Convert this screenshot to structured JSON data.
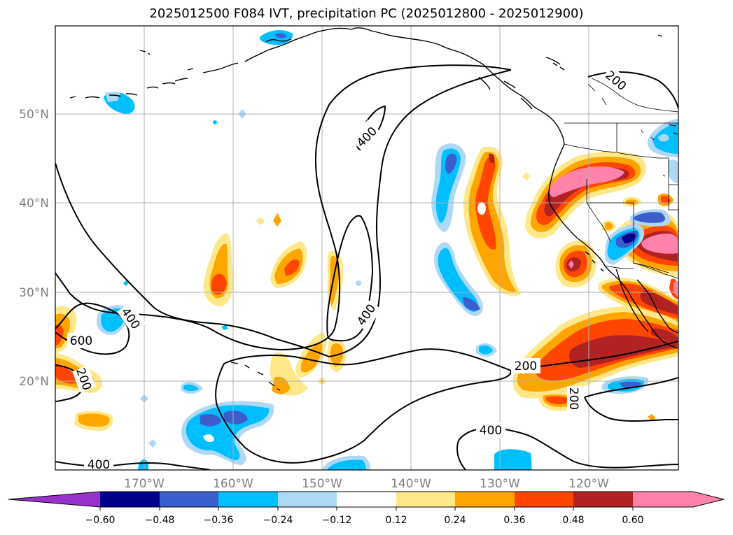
{
  "title": "2025012500 F084 IVT, precipitation PC (2025012800 - 2025012900)",
  "map": {
    "lon_labels": [
      "170°W",
      "160°W",
      "150°W",
      "140°W",
      "130°W",
      "120°W"
    ],
    "lat_labels": [
      "50°N",
      "40°N",
      "30°N",
      "20°N"
    ],
    "ivt_contour_labels": [
      "400",
      "400",
      "600",
      "400",
      "200",
      "200",
      "200",
      "400",
      "400",
      "200"
    ]
  },
  "colorbar": {
    "ticks": [
      "−0.60",
      "−0.48",
      "−0.36",
      "−0.24",
      "−0.12",
      "0.12",
      "0.24",
      "0.36",
      "0.48",
      "0.60"
    ],
    "colors": [
      "#9932cc",
      "#00008b",
      "#3a5fcd",
      "#00bfff",
      "#add8f6",
      "#ffffff",
      "#ffe88a",
      "#ffa500",
      "#ff4500",
      "#b22222",
      "#ff82ab"
    ]
  },
  "colors": {
    "grid": "#b0b0b0",
    "coast": "#000000"
  }
}
